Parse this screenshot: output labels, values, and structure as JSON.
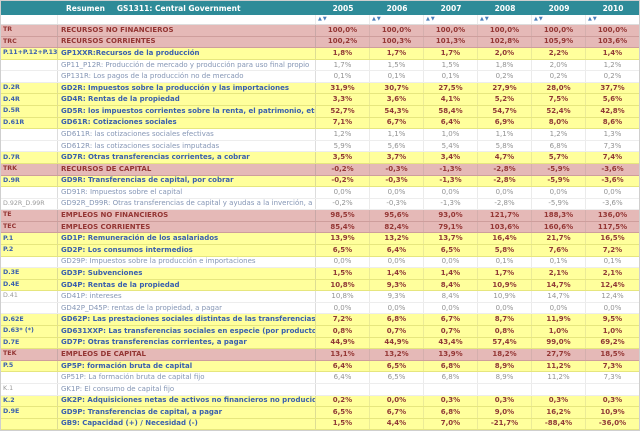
{
  "header": {
    "left_label": "Resumen",
    "title": "GS1311: Central Government",
    "years": [
      "2005",
      "2006",
      "2007",
      "2008",
      "2009",
      "2010"
    ]
  },
  "icons": {
    "sort_up": "▲",
    "sort_down": "▼"
  },
  "colors": {
    "header_bg": "#2E8B98",
    "section_bg": "#E5B9B7",
    "section_text": "#943634",
    "aggregate_bg": "#FFFF9C",
    "aggregate_label_text": "#3A60AE",
    "aggregate_value_text": "#8F3836",
    "detail_label_text": "#8596B5",
    "sort_arrow": "#4A7EBB"
  },
  "rows": [
    {
      "type": "section",
      "code": "TR",
      "label": "RECURSOS NO FINANCIEROS",
      "values": [
        "100,0%",
        "100,0%",
        "100,0%",
        "100,0%",
        "100,0%",
        "100,0%"
      ]
    },
    {
      "type": "section",
      "code": "TRC",
      "label": "RECURSOS CORRIENTES",
      "values": [
        "100,2%",
        "100,3%",
        "101,3%",
        "102,8%",
        "105,9%",
        "103,6%"
      ]
    },
    {
      "type": "aggregate",
      "code": "P.11+P.12+P.131",
      "label": "GP1XXR:Recursos de la producción",
      "values": [
        "1,8%",
        "1,7%",
        "1,7%",
        "2,0%",
        "2,2%",
        "1,4%"
      ]
    },
    {
      "type": "detail",
      "code": "",
      "label": "GP11_P12R: Producción de mercado y producción para uso final propio",
      "values": [
        "1,7%",
        "1,5%",
        "1,5%",
        "1,8%",
        "2,0%",
        "1,2%"
      ]
    },
    {
      "type": "detail",
      "code": "",
      "label": "GP131R: Los pagos de la producción no de mercado",
      "values": [
        "0,1%",
        "0,1%",
        "0,1%",
        "0,2%",
        "0,2%",
        "0,2%"
      ]
    },
    {
      "type": "aggregate",
      "code": "D.2R",
      "label": "GD2R: Impuestos sobre la producción y las importaciones",
      "values": [
        "31,9%",
        "30,7%",
        "27,5%",
        "27,9%",
        "28,0%",
        "37,7%"
      ]
    },
    {
      "type": "aggregate",
      "code": "D.4R",
      "label": "GD4R: Rentas de la propiedad",
      "values": [
        "3,3%",
        "3,6%",
        "4,1%",
        "5,2%",
        "7,5%",
        "5,6%"
      ]
    },
    {
      "type": "aggregate",
      "code": "D.5R",
      "label": "GD5R: los impuestos corrientes sobre la renta, el patrimonio, etc",
      "values": [
        "52,7%",
        "54,3%",
        "58,4%",
        "54,7%",
        "52,4%",
        "42,8%"
      ]
    },
    {
      "type": "aggregate",
      "code": "D.61R",
      "label": "GD61R: Cotizaciones sociales",
      "values": [
        "7,1%",
        "6,7%",
        "6,4%",
        "6,9%",
        "8,0%",
        "8,6%"
      ]
    },
    {
      "type": "detail",
      "code": "",
      "label": "GD611R: las cotizaciones sociales efectivas",
      "values": [
        "1,2%",
        "1,1%",
        "1,0%",
        "1,1%",
        "1,2%",
        "1,3%"
      ]
    },
    {
      "type": "detail",
      "code": "",
      "label": "GD612R: las cotizaciones sociales imputadas",
      "values": [
        "5,9%",
        "5,6%",
        "5,4%",
        "5,8%",
        "6,8%",
        "7,3%"
      ]
    },
    {
      "type": "aggregate",
      "code": "D.7R",
      "label": "GD7R: Otras transferencias corrientes, a cobrar",
      "values": [
        "3,5%",
        "3,7%",
        "3,4%",
        "4,7%",
        "5,7%",
        "7,4%"
      ]
    },
    {
      "type": "section",
      "code": "TRK",
      "label": "RECURSOS DE CAPITAL",
      "values": [
        "-0,2%",
        "-0,3%",
        "-1,3%",
        "-2,8%",
        "-5,9%",
        "-3,6%"
      ]
    },
    {
      "type": "aggregate",
      "code": "D.9R",
      "label": "GD9R: Transferencias de capital, por cobrar",
      "values": [
        "-0,2%",
        "-0,3%",
        "-1,3%",
        "-2,8%",
        "-5,9%",
        "-3,6%"
      ]
    },
    {
      "type": "detail",
      "code": "",
      "label": "GD91R: Impuestos sobre el capital",
      "values": [
        "0,0%",
        "0,0%",
        "0,0%",
        "0,0%",
        "0,0%",
        "0,0%"
      ]
    },
    {
      "type": "detail",
      "code": "D.92R_D.99R",
      "label": "GD92R_D99R: Otras transferencias de capital y ayudas a la inverción, a cobrar",
      "values": [
        "-0,2%",
        "-0,3%",
        "-1,3%",
        "-2,8%",
        "-5,9%",
        "-3,6%"
      ]
    },
    {
      "type": "section",
      "code": "TE",
      "label": "EMPLEOS NO FINANCIEROS",
      "values": [
        "98,5%",
        "95,6%",
        "93,0%",
        "121,7%",
        "188,3%",
        "136,0%"
      ]
    },
    {
      "type": "section",
      "code": "TEC",
      "label": "EMPLEOS CORRIENTES",
      "values": [
        "85,4%",
        "82,4%",
        "79,1%",
        "103,6%",
        "160,6%",
        "117,5%"
      ]
    },
    {
      "type": "aggregate",
      "code": "P.1",
      "label": "GD1P: Remuneración de los asalariados",
      "values": [
        "13,9%",
        "13,2%",
        "13,7%",
        "16,4%",
        "21,7%",
        "16,5%"
      ]
    },
    {
      "type": "aggregate",
      "code": "P.2",
      "label": "GD2P: Los consumos intermedios",
      "values": [
        "6,5%",
        "6,4%",
        "6,5%",
        "5,8%",
        "7,6%",
        "7,2%"
      ]
    },
    {
      "type": "detail",
      "code": "",
      "label": "GD29P: Impuestos sobre la producción e importaciones",
      "values": [
        "0,0%",
        "0,0%",
        "0,0%",
        "0,1%",
        "0,1%",
        "0,1%"
      ]
    },
    {
      "type": "aggregate",
      "code": "D.3E",
      "label": "GD3P: Subvenciones",
      "values": [
        "1,5%",
        "1,4%",
        "1,4%",
        "1,7%",
        "2,1%",
        "2,1%"
      ]
    },
    {
      "type": "aggregate",
      "code": "D.4E",
      "label": "GD4P: Rentas de la propiedad",
      "values": [
        "10,8%",
        "9,3%",
        "8,4%",
        "10,9%",
        "14,7%",
        "12,4%"
      ]
    },
    {
      "type": "detail",
      "code": "D.41",
      "label": "GD41P: intereses",
      "values": [
        "10,8%",
        "9,3%",
        "8,4%",
        "10,9%",
        "14,7%",
        "12,4%"
      ]
    },
    {
      "type": "detail",
      "code": "",
      "label": "GD42P_D45P: rentas de la propiedad, a pagar",
      "values": [
        "0,0%",
        "0,0%",
        "0,0%",
        "0,0%",
        "0,0%",
        "0,0%"
      ]
    },
    {
      "type": "aggregate",
      "code": "D.62E",
      "label": "GD62P: Las prestaciones sociales distintas de las transferencias sociales en especie, a pagar",
      "values": [
        "7,2%",
        "6,8%",
        "6,7%",
        "8,7%",
        "11,9%",
        "9,5%"
      ]
    },
    {
      "type": "aggregate",
      "code": "D.63* (*)",
      "label": "GD631XXP: Las transferencias sociales en especie (por productores de mercado), a pagar",
      "values": [
        "0,8%",
        "0,7%",
        "0,7%",
        "0,8%",
        "1,0%",
        "1,0%"
      ]
    },
    {
      "type": "aggregate",
      "code": "D.7E",
      "label": "GD7P: Otras transferencias corrientes, a pagar",
      "values": [
        "44,9%",
        "44,9%",
        "43,4%",
        "57,4%",
        "99,0%",
        "69,2%"
      ]
    },
    {
      "type": "section",
      "code": "TEK",
      "label": "EMPLEOS DE CAPITAL",
      "values": [
        "13,1%",
        "13,2%",
        "13,9%",
        "18,2%",
        "27,7%",
        "18,5%"
      ]
    },
    {
      "type": "aggregate",
      "code": "P.5",
      "label": "GP5P: formación bruta de capital",
      "values": [
        "6,4%",
        "6,5%",
        "6,8%",
        "8,9%",
        "11,2%",
        "7,3%"
      ]
    },
    {
      "type": "detail",
      "code": "",
      "label": "GP51P: La formación bruta de capital fijo",
      "values": [
        "6,4%",
        "6,5%",
        "6,8%",
        "8,9%",
        "11,2%",
        "7,3%"
      ]
    },
    {
      "type": "detail",
      "code": "K.1",
      "label": "GK1P: El consumo de capital fijo",
      "values": [
        "",
        "",
        "",
        "",
        "",
        ""
      ]
    },
    {
      "type": "aggregate",
      "code": "K.2",
      "label": "GK2P: Adquisiciones netas de activos no financieros no producidos",
      "values": [
        "0,2%",
        "0,0%",
        "0,3%",
        "0,3%",
        "0,3%",
        "0,3%"
      ]
    },
    {
      "type": "aggregate",
      "code": "D.9E",
      "label": "GD9P: Transferencias de capital, a pagar",
      "values": [
        "6,5%",
        "6,7%",
        "6,8%",
        "9,0%",
        "16,2%",
        "10,9%"
      ]
    },
    {
      "type": "aggregate",
      "code": "",
      "label": "GB9: Capacidad (+) / Necesidad (-)",
      "values": [
        "1,5%",
        "4,4%",
        "7,0%",
        "-21,7%",
        "-88,4%",
        "-36,0%"
      ]
    }
  ]
}
